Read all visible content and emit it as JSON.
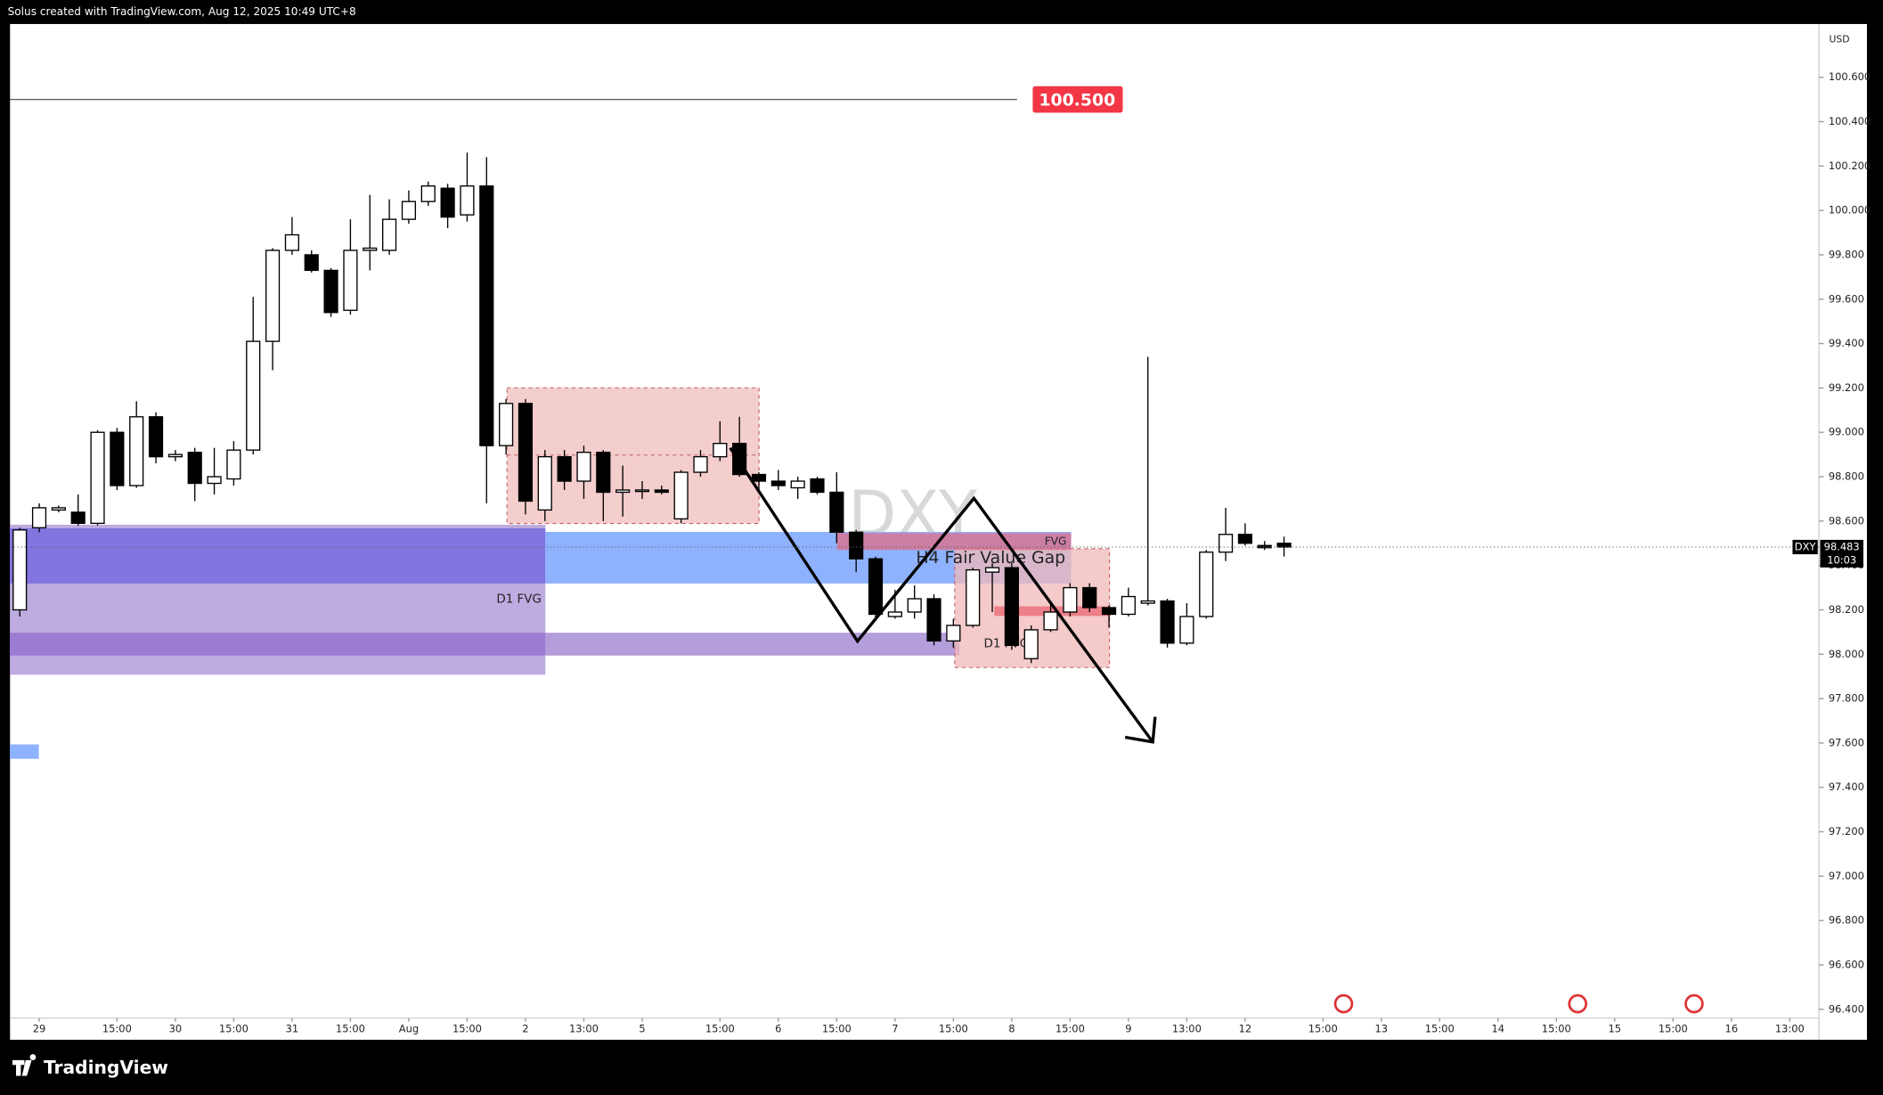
{
  "header": "Solus created with TradingView.com, Aug 12, 2025 10:49 UTC+8",
  "chart_data": {
    "type": "candlestick",
    "symbol_watermark": "DXY",
    "currency": "USD",
    "x": [
      0,
      1,
      2,
      3,
      4,
      5,
      6,
      7,
      8,
      9,
      10,
      11,
      12,
      13,
      14,
      15,
      16,
      17,
      18,
      19,
      20,
      21,
      22,
      23,
      24,
      25,
      26,
      27,
      28,
      29,
      30,
      31,
      32,
      33,
      34,
      35,
      36,
      37,
      38,
      39,
      40,
      41,
      42,
      43,
      44,
      45,
      46,
      47,
      48,
      49,
      50,
      51,
      52,
      53,
      54,
      55,
      56,
      57,
      58,
      59,
      60,
      61,
      62,
      63,
      64,
      65
    ],
    "open": [
      98.2,
      98.57,
      98.65,
      98.64,
      98.59,
      99.0,
      98.76,
      99.07,
      98.89,
      98.91,
      98.77,
      98.79,
      98.92,
      99.41,
      99.82,
      99.8,
      99.73,
      99.55,
      99.82,
      99.82,
      99.96,
      100.04,
      100.1,
      99.98,
      100.11,
      98.94,
      99.13,
      98.65,
      98.89,
      98.78,
      98.91,
      98.73,
      98.74,
      98.74,
      98.61,
      98.82,
      98.89,
      98.95,
      98.81,
      98.78,
      98.75,
      98.79,
      98.73,
      98.55,
      98.43,
      98.17,
      98.19,
      98.25,
      98.06,
      98.13,
      98.37,
      98.39,
      97.98,
      98.11,
      98.19,
      98.3,
      98.21,
      98.18,
      98.23,
      98.24,
      98.05,
      98.17,
      98.46,
      98.54,
      98.49,
      98.5
    ],
    "high": [
      98.57,
      98.68,
      98.67,
      98.72,
      99.01,
      99.02,
      99.14,
      99.09,
      98.92,
      98.93,
      98.93,
      98.96,
      99.61,
      99.83,
      99.97,
      99.82,
      99.74,
      99.96,
      100.07,
      100.05,
      100.09,
      100.13,
      100.12,
      100.26,
      100.24,
      99.15,
      99.15,
      98.92,
      98.92,
      98.94,
      98.92,
      98.85,
      98.78,
      98.76,
      98.83,
      98.92,
      99.05,
      99.07,
      98.82,
      98.83,
      98.8,
      98.8,
      98.82,
      98.56,
      98.44,
      98.29,
      98.31,
      98.27,
      98.16,
      98.39,
      98.41,
      98.41,
      98.13,
      98.23,
      98.32,
      98.32,
      98.22,
      98.3,
      99.34,
      98.25,
      98.23,
      98.47,
      98.66,
      98.59,
      98.51,
      98.53
    ],
    "low": [
      98.17,
      98.55,
      98.64,
      98.58,
      98.58,
      98.74,
      98.75,
      98.86,
      98.87,
      98.69,
      98.72,
      98.76,
      98.9,
      99.28,
      99.8,
      99.72,
      99.52,
      99.53,
      99.73,
      99.8,
      99.94,
      100.02,
      99.92,
      99.95,
      98.68,
      98.9,
      98.63,
      98.6,
      98.74,
      98.7,
      98.6,
      98.62,
      98.7,
      98.72,
      98.59,
      98.8,
      98.87,
      98.8,
      98.74,
      98.74,
      98.7,
      98.72,
      98.5,
      98.37,
      98.15,
      98.16,
      98.16,
      98.04,
      98.03,
      98.12,
      98.19,
      98.02,
      97.96,
      98.1,
      98.17,
      98.19,
      98.12,
      98.17,
      98.22,
      98.03,
      98.04,
      98.16,
      98.42,
      98.49,
      98.47,
      98.44
    ],
    "close": [
      98.56,
      98.66,
      98.66,
      98.59,
      99.0,
      98.76,
      99.07,
      98.89,
      98.9,
      98.77,
      98.8,
      98.92,
      99.41,
      99.82,
      99.89,
      99.73,
      99.54,
      99.82,
      99.83,
      99.96,
      100.04,
      100.11,
      99.97,
      100.11,
      98.94,
      99.13,
      98.69,
      98.89,
      98.78,
      98.91,
      98.73,
      98.74,
      98.74,
      98.73,
      98.82,
      98.89,
      98.95,
      98.81,
      98.78,
      98.76,
      98.78,
      98.73,
      98.55,
      98.43,
      98.18,
      98.19,
      98.25,
      98.06,
      98.13,
      98.38,
      98.39,
      98.04,
      98.11,
      98.19,
      98.3,
      98.21,
      98.18,
      98.26,
      98.24,
      98.05,
      98.17,
      98.46,
      98.54,
      98.5,
      98.48,
      98.483
    ],
    "up_color": "#ffffff",
    "down_color": "#000000",
    "xlim": [
      -0.5,
      92.5
    ],
    "ylim": [
      96.36,
      100.84
    ],
    "xticks": [
      {
        "value": 1,
        "label": "29"
      },
      {
        "value": 5,
        "label": "15:00"
      },
      {
        "value": 8,
        "label": "30"
      },
      {
        "value": 11,
        "label": "15:00"
      },
      {
        "value": 14,
        "label": "31"
      },
      {
        "value": 17,
        "label": "15:00"
      },
      {
        "value": 20,
        "label": "Aug"
      },
      {
        "value": 23,
        "label": "15:00"
      },
      {
        "value": 26,
        "label": "2"
      },
      {
        "value": 29,
        "label": "13:00"
      },
      {
        "value": 32,
        "label": "5"
      },
      {
        "value": 36,
        "label": "15:00"
      },
      {
        "value": 39,
        "label": "6"
      },
      {
        "value": 42,
        "label": "15:00"
      },
      {
        "value": 45,
        "label": "7"
      },
      {
        "value": 48,
        "label": "15:00"
      },
      {
        "value": 51,
        "label": "8"
      },
      {
        "value": 54,
        "label": "15:00"
      },
      {
        "value": 57,
        "label": "9"
      },
      {
        "value": 60,
        "label": "13:00"
      },
      {
        "value": 63,
        "label": "12"
      },
      {
        "value": 67,
        "label": "15:00"
      },
      {
        "value": 70,
        "label": "13"
      },
      {
        "value": 73,
        "label": "15:00"
      },
      {
        "value": 76,
        "label": "14"
      },
      {
        "value": 79,
        "label": "15:00"
      },
      {
        "value": 82,
        "label": "15"
      },
      {
        "value": 85,
        "label": "15:00"
      },
      {
        "value": 88,
        "label": "16"
      },
      {
        "value": 91,
        "label": "13:00"
      }
    ],
    "yticks": [
      {
        "value": 96.4,
        "label": "96.400"
      },
      {
        "value": 96.6,
        "label": "96.600"
      },
      {
        "value": 96.8,
        "label": "96.800"
      },
      {
        "value": 97.0,
        "label": "97.000"
      },
      {
        "value": 97.2,
        "label": "97.200"
      },
      {
        "value": 97.4,
        "label": "97.400"
      },
      {
        "value": 97.6,
        "label": "97.600"
      },
      {
        "value": 97.8,
        "label": "97.800"
      },
      {
        "value": 98.0,
        "label": "98.000"
      },
      {
        "value": 98.2,
        "label": "98.200"
      },
      {
        "value": 98.4,
        "label": "98.400"
      },
      {
        "value": 98.6,
        "label": "98.600"
      },
      {
        "value": 98.8,
        "label": "98.800"
      },
      {
        "value": 99.0,
        "label": "99.000"
      },
      {
        "value": 99.2,
        "label": "99.200"
      },
      {
        "value": 99.4,
        "label": "99.400"
      },
      {
        "value": 99.6,
        "label": "99.600"
      },
      {
        "value": 99.8,
        "label": "99.800"
      },
      {
        "value": 100.0,
        "label": "100.000"
      },
      {
        "value": 100.2,
        "label": "100.200"
      },
      {
        "value": 100.4,
        "label": "100.400"
      },
      {
        "value": 100.6,
        "label": "100.600"
      }
    ],
    "grid": false,
    "price_line": {
      "value": 100.5,
      "label": "100.500"
    },
    "last_price": {
      "symbol": "DXY",
      "value": 98.483,
      "countdown": "10:03"
    },
    "annotations": [
      "D1 FVG",
      "H4 Fair Value Gap",
      "FVG",
      "D1 FVG"
    ]
  },
  "footer": "TradingView"
}
